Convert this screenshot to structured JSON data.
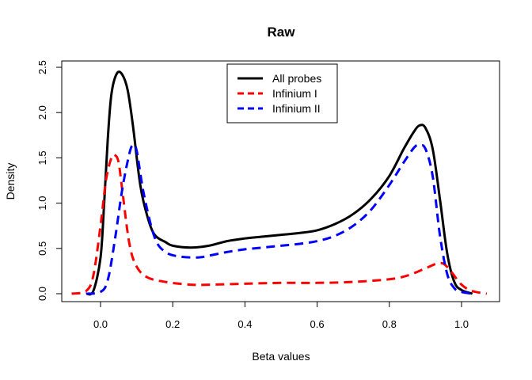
{
  "chart_data": {
    "type": "line",
    "title": "Raw",
    "xlabel": "Beta values",
    "ylabel": "Density",
    "xlim": [
      -0.1,
      1.1
    ],
    "ylim": [
      0,
      2.5
    ],
    "x_ticks": [
      0.0,
      0.2,
      0.4,
      0.6,
      0.8,
      1.0
    ],
    "x_tick_labels": [
      "0.0",
      "0.2",
      "0.4",
      "0.6",
      "0.8",
      "1.0"
    ],
    "y_ticks": [
      0.0,
      0.5,
      1.0,
      1.5,
      2.0,
      2.5
    ],
    "y_tick_labels": [
      "0.0",
      "0.5",
      "1.0",
      "1.5",
      "2.0",
      "2.5"
    ],
    "grid": false,
    "legend_position": "top-center",
    "series": [
      {
        "name": "All probes",
        "color": "#000000",
        "dash": "solid",
        "points": [
          [
            -0.04,
            0.0
          ],
          [
            -0.02,
            0.03
          ],
          [
            0.0,
            0.4
          ],
          [
            0.01,
            1.0
          ],
          [
            0.02,
            1.7
          ],
          [
            0.03,
            2.2
          ],
          [
            0.045,
            2.43
          ],
          [
            0.06,
            2.42
          ],
          [
            0.075,
            2.25
          ],
          [
            0.09,
            1.85
          ],
          [
            0.11,
            1.2
          ],
          [
            0.13,
            0.85
          ],
          [
            0.15,
            0.65
          ],
          [
            0.18,
            0.57
          ],
          [
            0.2,
            0.53
          ],
          [
            0.25,
            0.51
          ],
          [
            0.3,
            0.53
          ],
          [
            0.35,
            0.58
          ],
          [
            0.4,
            0.61
          ],
          [
            0.45,
            0.63
          ],
          [
            0.5,
            0.65
          ],
          [
            0.55,
            0.67
          ],
          [
            0.6,
            0.7
          ],
          [
            0.65,
            0.77
          ],
          [
            0.7,
            0.88
          ],
          [
            0.75,
            1.05
          ],
          [
            0.8,
            1.3
          ],
          [
            0.84,
            1.6
          ],
          [
            0.87,
            1.8
          ],
          [
            0.885,
            1.86
          ],
          [
            0.9,
            1.83
          ],
          [
            0.92,
            1.6
          ],
          [
            0.94,
            1.05
          ],
          [
            0.96,
            0.45
          ],
          [
            0.98,
            0.13
          ],
          [
            1.0,
            0.04
          ],
          [
            1.03,
            0.0
          ]
        ]
      },
      {
        "name": "Infinium I",
        "color": "#ff0000",
        "dash": "dashed",
        "points": [
          [
            -0.08,
            0.0
          ],
          [
            -0.04,
            0.03
          ],
          [
            -0.02,
            0.2
          ],
          [
            0.0,
            0.75
          ],
          [
            0.015,
            1.25
          ],
          [
            0.03,
            1.5
          ],
          [
            0.04,
            1.53
          ],
          [
            0.05,
            1.45
          ],
          [
            0.06,
            1.15
          ],
          [
            0.08,
            0.55
          ],
          [
            0.1,
            0.3
          ],
          [
            0.13,
            0.18
          ],
          [
            0.18,
            0.13
          ],
          [
            0.25,
            0.1
          ],
          [
            0.3,
            0.1
          ],
          [
            0.4,
            0.11
          ],
          [
            0.5,
            0.12
          ],
          [
            0.6,
            0.12
          ],
          [
            0.7,
            0.13
          ],
          [
            0.8,
            0.16
          ],
          [
            0.85,
            0.2
          ],
          [
            0.9,
            0.28
          ],
          [
            0.93,
            0.33
          ],
          [
            0.95,
            0.33
          ],
          [
            0.97,
            0.25
          ],
          [
            1.0,
            0.1
          ],
          [
            1.03,
            0.03
          ],
          [
            1.07,
            0.0
          ]
        ]
      },
      {
        "name": "Infinium II",
        "color": "#0000ff",
        "dash": "dashed",
        "points": [
          [
            -0.04,
            0.0
          ],
          [
            0.0,
            0.02
          ],
          [
            0.02,
            0.15
          ],
          [
            0.04,
            0.6
          ],
          [
            0.06,
            1.15
          ],
          [
            0.08,
            1.55
          ],
          [
            0.09,
            1.64
          ],
          [
            0.1,
            1.58
          ],
          [
            0.12,
            1.1
          ],
          [
            0.15,
            0.62
          ],
          [
            0.18,
            0.46
          ],
          [
            0.22,
            0.41
          ],
          [
            0.27,
            0.4
          ],
          [
            0.3,
            0.42
          ],
          [
            0.35,
            0.46
          ],
          [
            0.4,
            0.49
          ],
          [
            0.45,
            0.51
          ],
          [
            0.5,
            0.53
          ],
          [
            0.55,
            0.55
          ],
          [
            0.6,
            0.58
          ],
          [
            0.65,
            0.64
          ],
          [
            0.7,
            0.75
          ],
          [
            0.75,
            0.93
          ],
          [
            0.8,
            1.2
          ],
          [
            0.84,
            1.45
          ],
          [
            0.87,
            1.62
          ],
          [
            0.885,
            1.64
          ],
          [
            0.9,
            1.6
          ],
          [
            0.92,
            1.3
          ],
          [
            0.94,
            0.65
          ],
          [
            0.96,
            0.22
          ],
          [
            0.98,
            0.06
          ],
          [
            1.0,
            0.02
          ],
          [
            1.03,
            0.0
          ]
        ]
      }
    ]
  }
}
